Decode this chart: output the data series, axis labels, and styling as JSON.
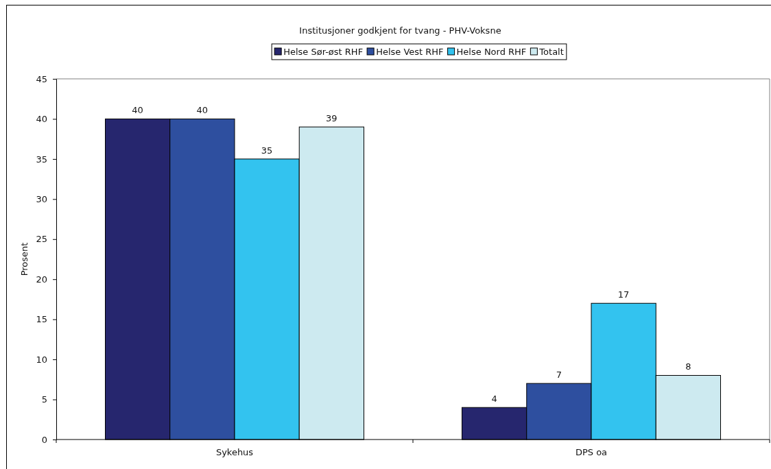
{
  "chart_data": {
    "type": "bar",
    "title": "Institusjoner godkjent for tvang - PHV-Voksne",
    "ylabel": "Prosent",
    "categories": [
      "Sykehus",
      "DPS oa"
    ],
    "series": [
      {
        "name": "Helse Sør-øst RHF",
        "color": "#26266e",
        "values": [
          40,
          4
        ]
      },
      {
        "name": "Helse Vest RHF",
        "color": "#2e4f9f",
        "values": [
          40,
          7
        ]
      },
      {
        "name": "Helse Nord RHF",
        "color": "#33c3ef",
        "values": [
          35,
          17
        ]
      },
      {
        "name": "Totalt",
        "color": "#cdeaf0",
        "values": [
          39,
          8
        ]
      }
    ],
    "ylim": [
      0,
      45
    ],
    "yticks": [
      0,
      5,
      10,
      15,
      20,
      25,
      30,
      35,
      40,
      45
    ],
    "data_labels": true,
    "legend": "top",
    "grid": false
  }
}
